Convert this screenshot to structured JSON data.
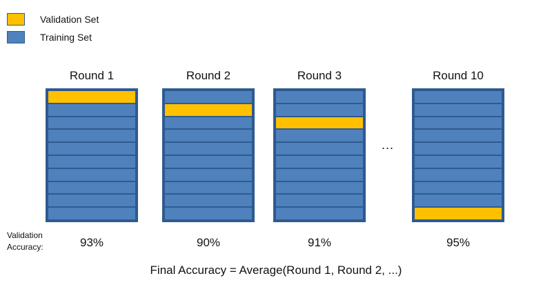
{
  "legend": [
    {
      "label": "Validation Set",
      "color": "#ffc000"
    },
    {
      "label": "Training Set",
      "color": "#4f81bd"
    }
  ],
  "colors": {
    "validation": "#ffc000",
    "training": "#4f81bd",
    "border": "#2e5a8f"
  },
  "folds_per_round": 10,
  "rounds": [
    {
      "title": "Round 1",
      "validation_fold": 1,
      "accuracy": "93%"
    },
    {
      "title": "Round 2",
      "validation_fold": 2,
      "accuracy": "90%"
    },
    {
      "title": "Round 3",
      "validation_fold": 3,
      "accuracy": "91%"
    },
    {
      "title": "Round 10",
      "validation_fold": 10,
      "accuracy": "95%"
    }
  ],
  "ellipsis": "...",
  "accuracy_label": {
    "line1": "Validation",
    "line2": "Accuracy:"
  },
  "final_text": "Final Accuracy  =  Average(Round 1, Round 2, ...)"
}
